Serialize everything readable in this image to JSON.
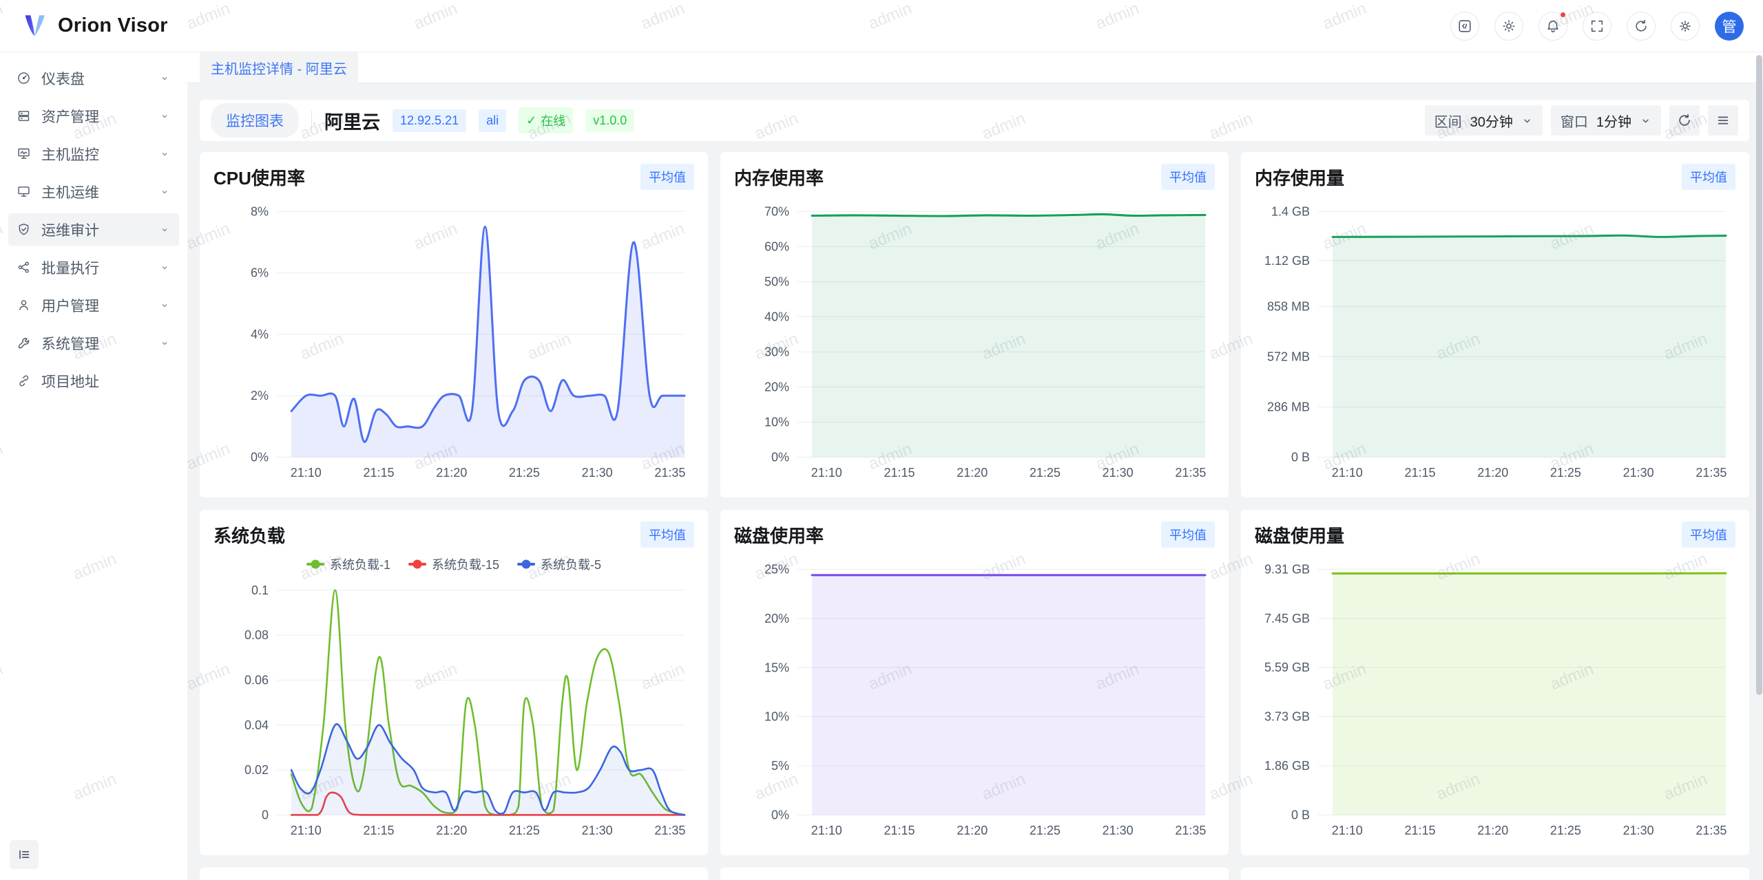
{
  "app": {
    "name": "Orion Visor",
    "avatar_text": "管"
  },
  "header": {
    "icons": [
      "code-icon",
      "theme-icon",
      "notifications-icon",
      "fullscreen-icon",
      "refresh-icon",
      "settings-icon"
    ],
    "notification_dot": true
  },
  "breadcrumb": "主机监控详情 - 阿里云",
  "sidebar": {
    "items": [
      {
        "label": "仪表盘",
        "icon": "dashboard-icon"
      },
      {
        "label": "资产管理",
        "icon": "assets-icon"
      },
      {
        "label": "主机监控",
        "icon": "host-monitor-icon"
      },
      {
        "label": "主机运维",
        "icon": "host-ops-icon"
      },
      {
        "label": "运维审计",
        "icon": "audit-icon",
        "active": true
      },
      {
        "label": "批量执行",
        "icon": "batch-exec-icon"
      },
      {
        "label": "用户管理",
        "icon": "user-mgmt-icon"
      },
      {
        "label": "系统管理",
        "icon": "system-mgmt-icon"
      },
      {
        "label": "项目地址",
        "icon": "project-link-icon"
      }
    ]
  },
  "toolbar": {
    "view_tab": "监控图表",
    "host_name": "阿里云",
    "host_ip": "12.92.5.21",
    "host_code": "ali",
    "status_check": "✓",
    "status": "在线",
    "version": "v1.0.0",
    "range_label": "区间",
    "range_value": "30分钟",
    "window_label": "窗口",
    "window_value": "1分钟"
  },
  "watermark": "admin",
  "chart_data": [
    {
      "type": "line",
      "title": "CPU使用率",
      "badge": "平均值",
      "x_range": [
        0,
        28
      ],
      "y_range": [
        0,
        8
      ],
      "x_ticks": [
        [
          "21:10",
          2
        ],
        [
          "21:15",
          7
        ],
        [
          "21:20",
          12
        ],
        [
          "21:25",
          17
        ],
        [
          "21:30",
          22
        ],
        [
          "21:35",
          27
        ]
      ],
      "y_ticks": [
        [
          "0%",
          0
        ],
        [
          "2%",
          2
        ],
        [
          "4%",
          4
        ],
        [
          "6%",
          6
        ],
        [
          "8%",
          8
        ]
      ],
      "series": [
        {
          "name": "CPU使用率",
          "color": "#4E6EF2",
          "fill": "rgba(78,110,242,0.13)",
          "points": [
            [
              1,
              1.5
            ],
            [
              2,
              2
            ],
            [
              3,
              2
            ],
            [
              4,
              2
            ],
            [
              4.6,
              1
            ],
            [
              5.3,
              1.9
            ],
            [
              6,
              0.5
            ],
            [
              6.8,
              1.5
            ],
            [
              7.5,
              1.4
            ],
            [
              8.2,
              1
            ],
            [
              9,
              1
            ],
            [
              10,
              1
            ],
            [
              10.8,
              1.6
            ],
            [
              11.5,
              2
            ],
            [
              12.5,
              2
            ],
            [
              13.4,
              1.5
            ],
            [
              14.3,
              7.5
            ],
            [
              15.2,
              1.5
            ],
            [
              16.2,
              1.5
            ],
            [
              17,
              2.5
            ],
            [
              18,
              2.5
            ],
            [
              18.8,
              1.5
            ],
            [
              19.6,
              2.5
            ],
            [
              20.4,
              2
            ],
            [
              21.5,
              2
            ],
            [
              22.5,
              2
            ],
            [
              23.4,
              1.5
            ],
            [
              24.5,
              7
            ],
            [
              25.6,
              2
            ],
            [
              26.5,
              2
            ],
            [
              28,
              2
            ]
          ]
        }
      ]
    },
    {
      "type": "line",
      "title": "内存使用率",
      "badge": "平均值",
      "x_range": [
        0,
        28
      ],
      "y_range": [
        0,
        70
      ],
      "x_ticks": [
        [
          "21:10",
          2
        ],
        [
          "21:15",
          7
        ],
        [
          "21:20",
          12
        ],
        [
          "21:25",
          17
        ],
        [
          "21:30",
          22
        ],
        [
          "21:35",
          27
        ]
      ],
      "y_ticks": [
        [
          "0%",
          0
        ],
        [
          "10%",
          10
        ],
        [
          "20%",
          20
        ],
        [
          "30%",
          30
        ],
        [
          "40%",
          40
        ],
        [
          "50%",
          50
        ],
        [
          "60%",
          60
        ],
        [
          "70%",
          70
        ]
      ],
      "series": [
        {
          "name": "内存使用率",
          "color": "#18A058",
          "fill": "rgba(24,160,88,0.10)",
          "points": [
            [
              1,
              68.8
            ],
            [
              4,
              68.9
            ],
            [
              7,
              68.8
            ],
            [
              10,
              68.7
            ],
            [
              13,
              68.9
            ],
            [
              16,
              68.8
            ],
            [
              19,
              69
            ],
            [
              21,
              69.2
            ],
            [
              23,
              68.8
            ],
            [
              25,
              68.9
            ],
            [
              28,
              69
            ]
          ]
        }
      ]
    },
    {
      "type": "line",
      "title": "内存使用量",
      "badge": "平均值",
      "x_range": [
        0,
        28
      ],
      "y_range": [
        0,
        1.4
      ],
      "x_ticks": [
        [
          "21:10",
          2
        ],
        [
          "21:15",
          7
        ],
        [
          "21:20",
          12
        ],
        [
          "21:25",
          17
        ],
        [
          "21:30",
          22
        ],
        [
          "21:35",
          27
        ]
      ],
      "y_ticks": [
        [
          "0 B",
          0
        ],
        [
          "286 MB",
          0.286
        ],
        [
          "572 MB",
          0.572
        ],
        [
          "858 MB",
          0.858
        ],
        [
          "1.12 GB",
          1.12
        ],
        [
          "1.4 GB",
          1.4
        ]
      ],
      "series": [
        {
          "name": "内存使用量",
          "color": "#18A058",
          "fill": "rgba(24,160,88,0.10)",
          "points": [
            [
              1,
              1.255
            ],
            [
              6,
              1.256
            ],
            [
              12,
              1.258
            ],
            [
              18,
              1.26
            ],
            [
              21,
              1.263
            ],
            [
              23.5,
              1.255
            ],
            [
              26,
              1.26
            ],
            [
              28,
              1.262
            ]
          ]
        }
      ]
    },
    {
      "type": "line",
      "title": "系统负载",
      "badge": "平均值",
      "x_range": [
        0,
        28
      ],
      "y_range": [
        0,
        0.1
      ],
      "x_ticks": [
        [
          "21:10",
          2
        ],
        [
          "21:15",
          7
        ],
        [
          "21:20",
          12
        ],
        [
          "21:25",
          17
        ],
        [
          "21:30",
          22
        ],
        [
          "21:35",
          27
        ]
      ],
      "y_ticks": [
        [
          "0",
          0
        ],
        [
          "0.02",
          0.02
        ],
        [
          "0.04",
          0.04
        ],
        [
          "0.06",
          0.06
        ],
        [
          "0.08",
          0.08
        ],
        [
          "0.1",
          0.1
        ]
      ],
      "legend": [
        {
          "name": "系统负载-1",
          "color": "#6FBF2C"
        },
        {
          "name": "系统负载-15",
          "color": "#F04040"
        },
        {
          "name": "系统负载-5",
          "color": "#3A66E0"
        }
      ],
      "series": [
        {
          "name": "系统负载-1",
          "color": "#6FBF2C",
          "points": [
            [
              1,
              0.018
            ],
            [
              1.7,
              0.005
            ],
            [
              2.4,
              0.003
            ],
            [
              3.2,
              0.04
            ],
            [
              4,
              0.1
            ],
            [
              4.7,
              0.04
            ],
            [
              5.4,
              0.012
            ],
            [
              6,
              0.02
            ],
            [
              7,
              0.07
            ],
            [
              7.7,
              0.04
            ],
            [
              8.4,
              0.015
            ],
            [
              9.2,
              0.013
            ],
            [
              10,
              0.01
            ],
            [
              10.8,
              0.004
            ],
            [
              11.6,
              0.001
            ],
            [
              12.4,
              0.003
            ],
            [
              13,
              0.05
            ],
            [
              13.6,
              0.04
            ],
            [
              14.3,
              0.004
            ],
            [
              15,
              0
            ],
            [
              16,
              0
            ],
            [
              16.6,
              0.004
            ],
            [
              17,
              0.05
            ],
            [
              17.6,
              0.04
            ],
            [
              18.2,
              0.004
            ],
            [
              19,
              0.002
            ],
            [
              19.6,
              0.05
            ],
            [
              20,
              0.06
            ],
            [
              20.6,
              0.02
            ],
            [
              21.3,
              0.05
            ],
            [
              22,
              0.07
            ],
            [
              22.8,
              0.072
            ],
            [
              23.5,
              0.05
            ],
            [
              24.2,
              0.02
            ],
            [
              25,
              0.018
            ],
            [
              25.8,
              0.01
            ],
            [
              26.6,
              0.003
            ],
            [
              27.3,
              0.001
            ],
            [
              28,
              0
            ]
          ]
        },
        {
          "name": "系统负载-15",
          "color": "#F04040",
          "points": [
            [
              1,
              0
            ],
            [
              2.8,
              0
            ],
            [
              3.4,
              0.008
            ],
            [
              3.8,
              0.01
            ],
            [
              4.4,
              0.008
            ],
            [
              5,
              0.001
            ],
            [
              6,
              0
            ],
            [
              10,
              0
            ],
            [
              14,
              0
            ],
            [
              18,
              0
            ],
            [
              22,
              0
            ],
            [
              25,
              0
            ],
            [
              28,
              0
            ]
          ]
        },
        {
          "name": "系统负载-5",
          "color": "#3A66E0",
          "fill": "rgba(58,102,224,0.09)",
          "points": [
            [
              1,
              0.02
            ],
            [
              1.6,
              0.012
            ],
            [
              2.3,
              0.01
            ],
            [
              3,
              0.02
            ],
            [
              4,
              0.04
            ],
            [
              4.8,
              0.033
            ],
            [
              5.5,
              0.025
            ],
            [
              6.2,
              0.03
            ],
            [
              7,
              0.04
            ],
            [
              7.8,
              0.032
            ],
            [
              8.6,
              0.025
            ],
            [
              9.4,
              0.02
            ],
            [
              10,
              0.012
            ],
            [
              10.8,
              0.01
            ],
            [
              11.6,
              0.01
            ],
            [
              12.2,
              0.002
            ],
            [
              12.8,
              0.01
            ],
            [
              13.6,
              0.01
            ],
            [
              14.4,
              0.01
            ],
            [
              15,
              0.002
            ],
            [
              15.6,
              0.001
            ],
            [
              16.2,
              0.01
            ],
            [
              17,
              0.01
            ],
            [
              17.8,
              0.01
            ],
            [
              18.4,
              0.002
            ],
            [
              19,
              0.01
            ],
            [
              19.8,
              0.01
            ],
            [
              20.6,
              0.01
            ],
            [
              21.4,
              0.012
            ],
            [
              22.2,
              0.02
            ],
            [
              23,
              0.03
            ],
            [
              23.6,
              0.028
            ],
            [
              24.2,
              0.02
            ],
            [
              25,
              0.02
            ],
            [
              25.8,
              0.02
            ],
            [
              26.4,
              0.01
            ],
            [
              27,
              0.002
            ],
            [
              28,
              0
            ]
          ]
        }
      ]
    },
    {
      "type": "line",
      "title": "磁盘使用率",
      "badge": "平均值",
      "x_range": [
        0,
        28
      ],
      "y_range": [
        0,
        25
      ],
      "x_ticks": [
        [
          "21:10",
          2
        ],
        [
          "21:15",
          7
        ],
        [
          "21:20",
          12
        ],
        [
          "21:25",
          17
        ],
        [
          "21:30",
          22
        ],
        [
          "21:35",
          27
        ]
      ],
      "y_ticks": [
        [
          "0%",
          0
        ],
        [
          "5%",
          5
        ],
        [
          "10%",
          10
        ],
        [
          "15%",
          15
        ],
        [
          "20%",
          20
        ],
        [
          "25%",
          25
        ]
      ],
      "series": [
        {
          "name": "磁盘使用率",
          "color": "#7048E8",
          "fill": "rgba(112,72,232,0.10)",
          "points": [
            [
              1,
              24.4
            ],
            [
              8,
              24.4
            ],
            [
              15,
              24.4
            ],
            [
              22,
              24.4
            ],
            [
              28,
              24.4
            ]
          ]
        }
      ]
    },
    {
      "type": "line",
      "title": "磁盘使用量",
      "badge": "平均值",
      "x_range": [
        0,
        28
      ],
      "y_range": [
        0,
        9.31
      ],
      "x_ticks": [
        [
          "21:10",
          2
        ],
        [
          "21:15",
          7
        ],
        [
          "21:20",
          12
        ],
        [
          "21:25",
          17
        ],
        [
          "21:30",
          22
        ],
        [
          "21:35",
          27
        ]
      ],
      "y_ticks": [
        [
          "0 B",
          0
        ],
        [
          "1.86 GB",
          1.86
        ],
        [
          "3.73 GB",
          3.73
        ],
        [
          "5.59 GB",
          5.59
        ],
        [
          "7.45 GB",
          7.45
        ],
        [
          "9.31 GB",
          9.31
        ]
      ],
      "series": [
        {
          "name": "磁盘使用量",
          "color": "#7BC417",
          "fill": "rgba(123,196,23,0.12)",
          "points": [
            [
              1,
              9.15
            ],
            [
              8,
              9.15
            ],
            [
              15,
              9.15
            ],
            [
              22,
              9.15
            ],
            [
              28,
              9.16
            ]
          ]
        }
      ]
    }
  ]
}
